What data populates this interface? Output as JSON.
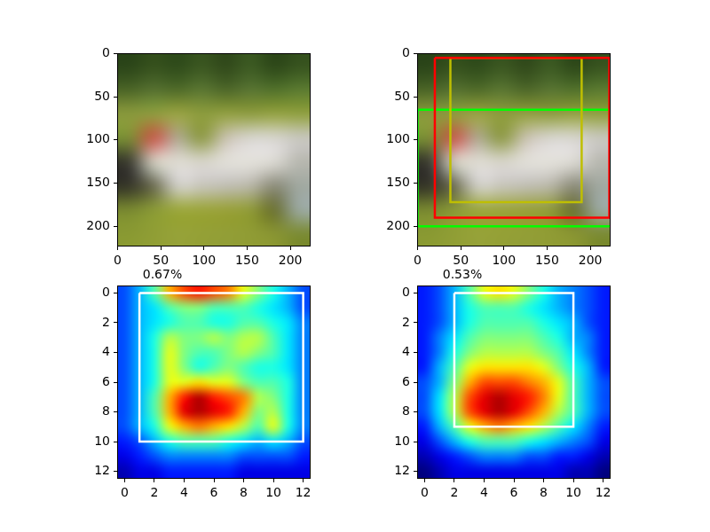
{
  "chart_data": [
    {
      "type": "image",
      "pixels": [
        [
          "#2a4418",
          "#35501c",
          "#2e4a1a",
          "#3a5620",
          "#30481a",
          "#3c5a22",
          "#2c4618",
          "#36521e"
        ],
        [
          "#4a6426",
          "#557030",
          "#4e6a28",
          "#5a7632",
          "#4c6628",
          "#587432",
          "#50702a",
          "#5a7a30"
        ],
        [
          "#8a9a3c",
          "#8e9e3e",
          "#9aa442",
          "#8c9c3c",
          "#92a040",
          "#8e9c3e",
          "#94a240",
          "#90a03e"
        ],
        [
          "#7d8f35",
          "#c8584a",
          "#b0a890",
          "#8e9a45",
          "#c9c2b0",
          "#d8d6d0",
          "#d8d6d0",
          "#c9c8c0"
        ],
        [
          "#3a3a30",
          "#d0cdc0",
          "#e0ddd5",
          "#d8d5cc",
          "#e2e0da",
          "#e4e2dc",
          "#dcdad4",
          "#b8b8b0"
        ],
        [
          "#353528",
          "#6a6a50",
          "#d0cfc8",
          "#c8c6bc",
          "#c0beb4",
          "#b8b6a8",
          "#8a8a78",
          "#a0a8a0"
        ],
        [
          "#7a8a30",
          "#8a9a35",
          "#9aa638",
          "#9aa438",
          "#98a036",
          "#8f9a35",
          "#6a7030",
          "#9aa8a0"
        ],
        [
          "#8a9a32",
          "#909e35",
          "#96a238",
          "#94a036",
          "#929e36",
          "#909c34",
          "#8a9632",
          "#7a8a30"
        ]
      ],
      "xlim": [
        -0.5,
        223.5
      ],
      "ylim": [
        223.5,
        -0.5
      ],
      "xticks": [
        0,
        50,
        100,
        150,
        200
      ],
      "yticks": [
        0,
        50,
        100,
        150,
        200
      ],
      "grid": false
    },
    {
      "type": "image",
      "pixels": [
        [
          "#2a4418",
          "#35501c",
          "#2e4a1a",
          "#3a5620",
          "#30481a",
          "#3c5a22",
          "#2c4618",
          "#36521e"
        ],
        [
          "#4a6426",
          "#557030",
          "#4e6a28",
          "#5a7632",
          "#4c6628",
          "#587432",
          "#50702a",
          "#5a7a30"
        ],
        [
          "#8a9a3c",
          "#8e9e3e",
          "#9aa442",
          "#8c9c3c",
          "#92a040",
          "#8e9c3e",
          "#94a240",
          "#90a03e"
        ],
        [
          "#7d8f35",
          "#c8584a",
          "#b0a890",
          "#8e9a45",
          "#c9c2b0",
          "#d8d6d0",
          "#d8d6d0",
          "#c9c8c0"
        ],
        [
          "#3a3a30",
          "#d0cdc0",
          "#e0ddd5",
          "#d8d5cc",
          "#e2e0da",
          "#e4e2dc",
          "#dcdad4",
          "#b8b8b0"
        ],
        [
          "#353528",
          "#6a6a50",
          "#d0cfc8",
          "#c8c6bc",
          "#c0beb4",
          "#b8b6a8",
          "#8a8a78",
          "#a0a8a0"
        ],
        [
          "#7a8a30",
          "#8a9a35",
          "#9aa638",
          "#9aa438",
          "#98a036",
          "#8f9a35",
          "#6a7030",
          "#9aa8a0"
        ],
        [
          "#8a9a32",
          "#909e35",
          "#96a238",
          "#94a036",
          "#929e36",
          "#909c34",
          "#8a9632",
          "#7a8a30"
        ]
      ],
      "boxes": [
        {
          "color": "#ff0000",
          "x": [
            20,
            222
          ],
          "y": [
            5,
            190
          ]
        },
        {
          "color": "#bfbf00",
          "x": [
            38,
            190
          ],
          "y": [
            5,
            172
          ]
        },
        {
          "color": "#00ff00",
          "x": [
            0,
            224
          ],
          "y": [
            65,
            200
          ]
        }
      ],
      "xlim": [
        -0.5,
        223.5
      ],
      "ylim": [
        223.5,
        -0.5
      ],
      "xticks": [
        0,
        50,
        100,
        150,
        200
      ],
      "yticks": [
        0,
        50,
        100,
        150,
        200
      ],
      "grid": false
    },
    {
      "type": "heatmap",
      "title": "0.67%",
      "cells": [
        [
          0.2,
          0.3,
          0.45,
          0.7,
          0.8,
          0.85,
          0.8,
          0.75,
          0.6,
          0.5,
          0.4,
          0.3,
          0.2
        ],
        [
          0.2,
          0.3,
          0.35,
          0.45,
          0.5,
          0.5,
          0.45,
          0.45,
          0.45,
          0.4,
          0.35,
          0.3,
          0.2
        ],
        [
          0.2,
          0.3,
          0.35,
          0.4,
          0.45,
          0.45,
          0.4,
          0.4,
          0.45,
          0.45,
          0.4,
          0.35,
          0.25
        ],
        [
          0.2,
          0.3,
          0.4,
          0.55,
          0.5,
          0.5,
          0.55,
          0.5,
          0.55,
          0.55,
          0.45,
          0.35,
          0.25
        ],
        [
          0.2,
          0.3,
          0.4,
          0.6,
          0.5,
          0.45,
          0.45,
          0.5,
          0.55,
          0.5,
          0.45,
          0.35,
          0.25
        ],
        [
          0.2,
          0.3,
          0.4,
          0.6,
          0.5,
          0.4,
          0.45,
          0.5,
          0.45,
          0.4,
          0.4,
          0.35,
          0.25
        ],
        [
          0.2,
          0.3,
          0.4,
          0.6,
          0.6,
          0.65,
          0.6,
          0.6,
          0.5,
          0.45,
          0.45,
          0.4,
          0.25
        ],
        [
          0.2,
          0.3,
          0.45,
          0.7,
          0.85,
          0.95,
          0.85,
          0.8,
          0.75,
          0.55,
          0.5,
          0.4,
          0.25
        ],
        [
          0.2,
          0.3,
          0.45,
          0.7,
          0.9,
          0.95,
          0.9,
          0.85,
          0.7,
          0.5,
          0.55,
          0.4,
          0.25
        ],
        [
          0.2,
          0.3,
          0.4,
          0.6,
          0.7,
          0.75,
          0.7,
          0.65,
          0.55,
          0.45,
          0.6,
          0.4,
          0.25
        ],
        [
          0.15,
          0.2,
          0.3,
          0.4,
          0.45,
          0.45,
          0.45,
          0.4,
          0.35,
          0.3,
          0.35,
          0.3,
          0.2
        ],
        [
          0.1,
          0.15,
          0.2,
          0.25,
          0.25,
          0.25,
          0.25,
          0.25,
          0.2,
          0.2,
          0.2,
          0.2,
          0.15
        ],
        [
          0.05,
          0.1,
          0.1,
          0.15,
          0.15,
          0.15,
          0.15,
          0.15,
          0.1,
          0.1,
          0.1,
          0.1,
          0.1
        ]
      ],
      "color_range": [
        0,
        1
      ],
      "boxes": [
        {
          "color": "#ffffff",
          "x": [
            1,
            12
          ],
          "y": [
            0,
            10
          ]
        }
      ],
      "xlim": [
        -0.5,
        12.5
      ],
      "ylim": [
        12.5,
        -0.5
      ],
      "xticks": [
        0,
        2,
        4,
        6,
        8,
        10,
        12
      ],
      "yticks": [
        0,
        2,
        4,
        6,
        8,
        10,
        12
      ],
      "grid": false
    },
    {
      "type": "heatmap",
      "title": "0.53%",
      "cells": [
        [
          0.15,
          0.2,
          0.3,
          0.45,
          0.6,
          0.65,
          0.6,
          0.5,
          0.4,
          0.3,
          0.25,
          0.2,
          0.15
        ],
        [
          0.15,
          0.2,
          0.3,
          0.4,
          0.45,
          0.45,
          0.45,
          0.4,
          0.35,
          0.3,
          0.25,
          0.2,
          0.15
        ],
        [
          0.15,
          0.2,
          0.3,
          0.4,
          0.45,
          0.45,
          0.45,
          0.45,
          0.4,
          0.35,
          0.3,
          0.2,
          0.15
        ],
        [
          0.15,
          0.25,
          0.35,
          0.45,
          0.5,
          0.5,
          0.5,
          0.5,
          0.45,
          0.4,
          0.3,
          0.25,
          0.15
        ],
        [
          0.15,
          0.25,
          0.4,
          0.5,
          0.55,
          0.55,
          0.55,
          0.55,
          0.5,
          0.45,
          0.35,
          0.25,
          0.15
        ],
        [
          0.15,
          0.3,
          0.45,
          0.6,
          0.65,
          0.65,
          0.65,
          0.65,
          0.6,
          0.5,
          0.4,
          0.3,
          0.15
        ],
        [
          0.2,
          0.3,
          0.5,
          0.7,
          0.8,
          0.8,
          0.8,
          0.75,
          0.7,
          0.6,
          0.45,
          0.3,
          0.2
        ],
        [
          0.2,
          0.35,
          0.55,
          0.8,
          0.9,
          0.95,
          0.9,
          0.85,
          0.75,
          0.6,
          0.45,
          0.3,
          0.2
        ],
        [
          0.2,
          0.35,
          0.55,
          0.8,
          0.9,
          0.95,
          0.9,
          0.8,
          0.7,
          0.55,
          0.45,
          0.3,
          0.2
        ],
        [
          0.15,
          0.3,
          0.45,
          0.6,
          0.7,
          0.75,
          0.7,
          0.65,
          0.55,
          0.45,
          0.35,
          0.25,
          0.15
        ],
        [
          0.1,
          0.2,
          0.3,
          0.4,
          0.45,
          0.45,
          0.45,
          0.4,
          0.35,
          0.3,
          0.25,
          0.2,
          0.1
        ],
        [
          0.05,
          0.1,
          0.15,
          0.2,
          0.25,
          0.25,
          0.25,
          0.2,
          0.2,
          0.15,
          0.15,
          0.1,
          0.05
        ],
        [
          0.0,
          0.05,
          0.1,
          0.1,
          0.1,
          0.1,
          0.1,
          0.1,
          0.1,
          0.1,
          0.05,
          0.05,
          0.0
        ]
      ],
      "color_range": [
        0,
        1
      ],
      "boxes": [
        {
          "color": "#ffffff",
          "x": [
            2,
            10
          ],
          "y": [
            0,
            9
          ]
        }
      ],
      "xlim": [
        -0.5,
        12.5
      ],
      "ylim": [
        12.5,
        -0.5
      ],
      "xticks": [
        0,
        2,
        4,
        6,
        8,
        10,
        12
      ],
      "yticks": [
        0,
        2,
        4,
        6,
        8,
        10,
        12
      ],
      "grid": false
    }
  ]
}
